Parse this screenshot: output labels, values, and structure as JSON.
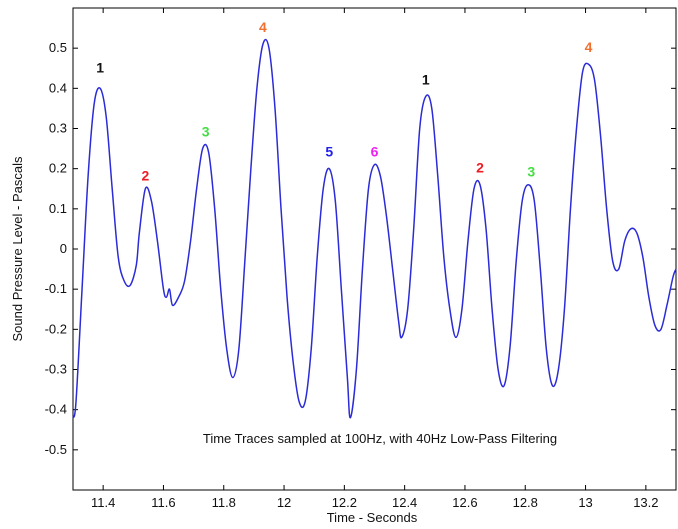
{
  "chart_data": {
    "type": "line",
    "title": "",
    "xlabel": "Time - Seconds",
    "ylabel": "Sound Pressure Level - Pascals",
    "annotation": "Time Traces sampled at 100Hz, with 40Hz Low-Pass Filtering",
    "xlim": [
      11.3,
      13.3
    ],
    "ylim": [
      -0.6,
      0.6
    ],
    "xticks": [
      "11.4",
      "11.6",
      "11.8",
      "12",
      "12.2",
      "12.4",
      "12.6",
      "12.8",
      "13",
      "13.2"
    ],
    "yticks": [
      "-0.5",
      "-0.4",
      "-0.3",
      "-0.2",
      "-0.1",
      "0",
      "0.1",
      "0.2",
      "0.3",
      "0.4",
      "0.5"
    ],
    "grid": false,
    "line_color": "#2b2bd8",
    "series": [
      {
        "points": [
          [
            11.3,
            -0.42
          ],
          [
            11.31,
            -0.38
          ],
          [
            11.33,
            -0.1
          ],
          [
            11.35,
            0.18
          ],
          [
            11.37,
            0.36
          ],
          [
            11.39,
            0.4
          ],
          [
            11.41,
            0.33
          ],
          [
            11.43,
            0.15
          ],
          [
            11.45,
            -0.02
          ],
          [
            11.47,
            -0.08
          ],
          [
            11.49,
            -0.09
          ],
          [
            11.51,
            -0.04
          ],
          [
            11.52,
            0.04
          ],
          [
            11.54,
            0.15
          ],
          [
            11.56,
            0.12
          ],
          [
            11.58,
            0.02
          ],
          [
            11.6,
            -0.1
          ],
          [
            11.61,
            -0.12
          ],
          [
            11.62,
            -0.1
          ],
          [
            11.63,
            -0.14
          ],
          [
            11.65,
            -0.12
          ],
          [
            11.67,
            -0.08
          ],
          [
            11.69,
            0.02
          ],
          [
            11.71,
            0.15
          ],
          [
            11.73,
            0.25
          ],
          [
            11.75,
            0.24
          ],
          [
            11.77,
            0.1
          ],
          [
            11.79,
            -0.1
          ],
          [
            11.81,
            -0.25
          ],
          [
            11.83,
            -0.32
          ],
          [
            11.85,
            -0.25
          ],
          [
            11.87,
            -0.03
          ],
          [
            11.89,
            0.2
          ],
          [
            11.91,
            0.4
          ],
          [
            11.93,
            0.51
          ],
          [
            11.95,
            0.5
          ],
          [
            11.97,
            0.35
          ],
          [
            11.99,
            0.1
          ],
          [
            12.01,
            -0.12
          ],
          [
            12.03,
            -0.28
          ],
          [
            12.05,
            -0.38
          ],
          [
            12.07,
            -0.38
          ],
          [
            12.09,
            -0.25
          ],
          [
            12.11,
            -0.02
          ],
          [
            12.13,
            0.15
          ],
          [
            12.15,
            0.2
          ],
          [
            12.17,
            0.12
          ],
          [
            12.19,
            -0.1
          ],
          [
            12.21,
            -0.32
          ],
          [
            12.22,
            -0.42
          ],
          [
            12.24,
            -0.3
          ],
          [
            12.26,
            -0.05
          ],
          [
            12.28,
            0.15
          ],
          [
            12.3,
            0.21
          ],
          [
            12.32,
            0.18
          ],
          [
            12.34,
            0.08
          ],
          [
            12.36,
            -0.05
          ],
          [
            12.38,
            -0.18
          ],
          [
            12.39,
            -0.22
          ],
          [
            12.41,
            -0.15
          ],
          [
            12.43,
            0.05
          ],
          [
            12.45,
            0.3
          ],
          [
            12.47,
            0.38
          ],
          [
            12.49,
            0.35
          ],
          [
            12.51,
            0.18
          ],
          [
            12.53,
            -0.02
          ],
          [
            12.55,
            -0.15
          ],
          [
            12.57,
            -0.22
          ],
          [
            12.59,
            -0.15
          ],
          [
            12.61,
            0.02
          ],
          [
            12.63,
            0.15
          ],
          [
            12.65,
            0.16
          ],
          [
            12.67,
            0.05
          ],
          [
            12.69,
            -0.15
          ],
          [
            12.71,
            -0.3
          ],
          [
            12.73,
            -0.34
          ],
          [
            12.75,
            -0.24
          ],
          [
            12.77,
            -0.03
          ],
          [
            12.79,
            0.12
          ],
          [
            12.81,
            0.16
          ],
          [
            12.83,
            0.12
          ],
          [
            12.85,
            -0.05
          ],
          [
            12.87,
            -0.25
          ],
          [
            12.89,
            -0.34
          ],
          [
            12.91,
            -0.3
          ],
          [
            12.93,
            -0.15
          ],
          [
            12.95,
            0.1
          ],
          [
            12.97,
            0.3
          ],
          [
            12.99,
            0.44
          ],
          [
            13.01,
            0.46
          ],
          [
            13.03,
            0.42
          ],
          [
            13.05,
            0.28
          ],
          [
            13.07,
            0.1
          ],
          [
            13.09,
            -0.03
          ],
          [
            13.11,
            -0.05
          ],
          [
            13.13,
            0.02
          ],
          [
            13.15,
            0.05
          ],
          [
            13.17,
            0.04
          ],
          [
            13.19,
            -0.02
          ],
          [
            13.21,
            -0.12
          ],
          [
            13.23,
            -0.19
          ],
          [
            13.25,
            -0.2
          ],
          [
            13.27,
            -0.14
          ],
          [
            13.29,
            -0.07
          ],
          [
            13.3,
            -0.05
          ]
        ]
      }
    ],
    "peak_labels": [
      {
        "text": "1",
        "x": 11.39,
        "y": 0.44,
        "color": "#111111"
      },
      {
        "text": "2",
        "x": 11.54,
        "y": 0.17,
        "color": "#ee1c25"
      },
      {
        "text": "3",
        "x": 11.74,
        "y": 0.28,
        "color": "#44dd44"
      },
      {
        "text": "4",
        "x": 11.93,
        "y": 0.54,
        "color": "#f07030"
      },
      {
        "text": "5",
        "x": 12.15,
        "y": 0.23,
        "color": "#2222ee"
      },
      {
        "text": "6",
        "x": 12.3,
        "y": 0.23,
        "color": "#ee22ee"
      },
      {
        "text": "1",
        "x": 12.47,
        "y": 0.41,
        "color": "#111111"
      },
      {
        "text": "2",
        "x": 12.65,
        "y": 0.19,
        "color": "#ee1c25"
      },
      {
        "text": "3",
        "x": 12.82,
        "y": 0.18,
        "color": "#44dd44"
      },
      {
        "text": "4",
        "x": 13.01,
        "y": 0.49,
        "color": "#f07030"
      }
    ]
  }
}
